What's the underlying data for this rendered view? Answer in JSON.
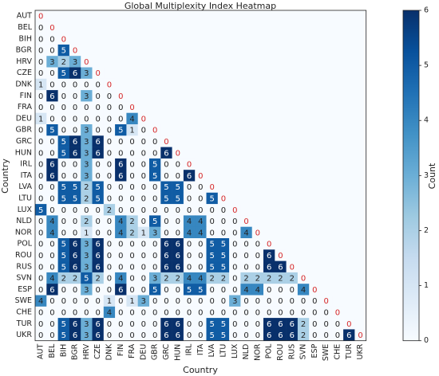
{
  "chart_data": {
    "type": "heatmap",
    "title": "Global Multiplexity Index Heatmap",
    "xlabel": "Country",
    "ylabel": "Country",
    "colorbar_label": "Count",
    "x_categories": [
      "AUT",
      "BEL",
      "BIH",
      "BGR",
      "HRV",
      "CZE",
      "DNK",
      "FIN",
      "FRA",
      "DEU",
      "GBR",
      "GRC",
      "HUN",
      "IRL",
      "ITA",
      "LVA",
      "LTU",
      "LUX",
      "NLD",
      "NOR",
      "POL",
      "ROU",
      "RUS",
      "SVN",
      "ESP",
      "SWE",
      "CHE",
      "TUR",
      "UKR"
    ],
    "y_categories": [
      "AUT",
      "BEL",
      "BIH",
      "BGR",
      "HRV",
      "CZE",
      "DNK",
      "FIN",
      "FRA",
      "DEU",
      "GBR",
      "GRC",
      "HUN",
      "IRL",
      "ITA",
      "LVA",
      "LTU",
      "LUX",
      "NLD",
      "NOR",
      "POL",
      "ROU",
      "RUS",
      "SVN",
      "ESP",
      "SWE",
      "CHE",
      "TUR",
      "UKR"
    ],
    "values": [
      [
        0
      ],
      [
        0,
        0
      ],
      [
        0,
        0,
        0
      ],
      [
        0,
        0,
        5,
        0
      ],
      [
        0,
        3,
        2,
        3,
        0
      ],
      [
        0,
        0,
        5,
        6,
        3,
        0
      ],
      [
        1,
        0,
        0,
        0,
        0,
        0,
        0
      ],
      [
        0,
        6,
        0,
        0,
        3,
        0,
        0,
        0
      ],
      [
        0,
        0,
        0,
        0,
        0,
        0,
        0,
        0,
        0
      ],
      [
        1,
        0,
        0,
        0,
        0,
        0,
        0,
        0,
        4,
        0
      ],
      [
        0,
        5,
        0,
        0,
        3,
        0,
        0,
        5,
        1,
        0,
        0
      ],
      [
        0,
        0,
        5,
        6,
        3,
        6,
        0,
        0,
        0,
        0,
        0,
        0
      ],
      [
        0,
        0,
        5,
        6,
        3,
        6,
        0,
        0,
        0,
        0,
        0,
        6,
        0
      ],
      [
        0,
        6,
        0,
        0,
        3,
        0,
        0,
        6,
        0,
        0,
        5,
        0,
        0,
        0
      ],
      [
        0,
        6,
        0,
        0,
        3,
        0,
        0,
        6,
        0,
        0,
        5,
        0,
        0,
        6,
        0
      ],
      [
        0,
        0,
        5,
        5,
        2,
        5,
        0,
        0,
        0,
        0,
        0,
        5,
        5,
        0,
        0,
        0
      ],
      [
        0,
        0,
        5,
        5,
        2,
        5,
        0,
        0,
        0,
        0,
        0,
        5,
        5,
        0,
        0,
        5,
        0
      ],
      [
        5,
        0,
        0,
        0,
        0,
        0,
        2,
        0,
        0,
        0,
        0,
        0,
        0,
        0,
        0,
        0,
        0,
        0
      ],
      [
        0,
        4,
        0,
        0,
        2,
        0,
        0,
        4,
        2,
        0,
        5,
        0,
        0,
        4,
        4,
        0,
        0,
        0,
        0
      ],
      [
        0,
        4,
        0,
        0,
        1,
        0,
        0,
        4,
        2,
        1,
        3,
        0,
        0,
        4,
        4,
        0,
        0,
        0,
        4,
        0
      ],
      [
        0,
        0,
        5,
        6,
        3,
        6,
        0,
        0,
        0,
        0,
        0,
        6,
        6,
        0,
        0,
        5,
        5,
        0,
        0,
        0,
        0
      ],
      [
        0,
        0,
        5,
        6,
        3,
        6,
        0,
        0,
        0,
        0,
        0,
        6,
        6,
        0,
        0,
        5,
        5,
        0,
        0,
        0,
        6,
        0
      ],
      [
        0,
        0,
        5,
        6,
        3,
        6,
        0,
        0,
        0,
        0,
        0,
        6,
        6,
        0,
        0,
        5,
        5,
        0,
        0,
        0,
        6,
        6,
        0
      ],
      [
        0,
        4,
        2,
        2,
        5,
        2,
        0,
        4,
        0,
        0,
        3,
        2,
        2,
        4,
        4,
        2,
        2,
        0,
        2,
        2,
        2,
        2,
        2,
        0
      ],
      [
        0,
        6,
        0,
        0,
        3,
        0,
        0,
        6,
        0,
        0,
        5,
        0,
        0,
        5,
        5,
        0,
        0,
        0,
        4,
        4,
        0,
        0,
        0,
        4,
        0
      ],
      [
        4,
        0,
        0,
        0,
        0,
        0,
        1,
        0,
        1,
        3,
        0,
        0,
        0,
        0,
        0,
        0,
        0,
        3,
        0,
        0,
        0,
        0,
        0,
        0,
        0,
        0
      ],
      [
        0,
        0,
        0,
        0,
        0,
        0,
        4,
        0,
        0,
        0,
        0,
        0,
        0,
        0,
        0,
        0,
        0,
        0,
        0,
        0,
        0,
        0,
        0,
        0,
        0,
        0,
        0
      ],
      [
        0,
        0,
        5,
        6,
        3,
        6,
        0,
        0,
        0,
        0,
        0,
        6,
        6,
        0,
        0,
        5,
        5,
        0,
        0,
        0,
        6,
        6,
        6,
        2,
        0,
        0,
        0,
        0
      ],
      [
        0,
        0,
        5,
        6,
        3,
        6,
        0,
        0,
        0,
        0,
        0,
        6,
        6,
        0,
        0,
        5,
        5,
        0,
        0,
        0,
        6,
        6,
        6,
        2,
        0,
        0,
        0,
        6,
        0
      ]
    ],
    "colormap": [
      "#f7fbff",
      "#deebf7",
      "#c6dbef",
      "#9ecae1",
      "#6baed6",
      "#4292c6",
      "#2171b5",
      "#08519c",
      "#08306b"
    ],
    "diagonal_label_color": "#d62728",
    "clim": [
      0,
      6
    ],
    "cticks": [
      0,
      1,
      2,
      3,
      4,
      5,
      6
    ]
  }
}
